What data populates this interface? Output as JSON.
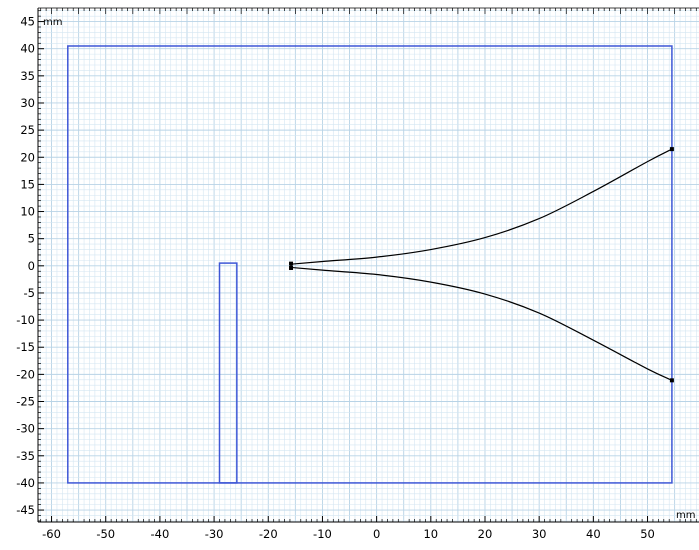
{
  "graphics": {
    "x_unit_label": "mm",
    "y_unit_label": "mm",
    "x_ticks": [
      -60,
      -50,
      -40,
      -30,
      -20,
      -10,
      0,
      10,
      20,
      30,
      40,
      50
    ],
    "y_ticks": [
      45,
      40,
      35,
      30,
      25,
      20,
      15,
      10,
      5,
      0,
      -5,
      -10,
      -15,
      -20,
      -25,
      -30,
      -35,
      -40,
      -45
    ],
    "x_tick_labels": [
      "-60",
      "-50",
      "-40",
      "-30",
      "-20",
      "-10",
      "0",
      "10",
      "20",
      "30",
      "40",
      "50"
    ],
    "y_tick_labels": [
      "45",
      "40",
      "35",
      "30",
      "25",
      "20",
      "15",
      "10",
      "5",
      "0",
      "-5",
      "-10",
      "-15",
      "-20",
      "-25",
      "-30",
      "-35",
      "-40",
      "-45"
    ],
    "x_range": [
      -62.5,
      59.5
    ],
    "y_range": [
      -47.2,
      47.5
    ],
    "grid_minor_step": 1,
    "grid_major_step": 5,
    "colors": {
      "background": "#ffffff",
      "grid_minor": "#d4e6f2",
      "grid_major": "#b8d3e6",
      "domain": "#3e57d6",
      "curve": "#000000",
      "axis_text": "#000000"
    },
    "geometry": {
      "outer_rectangle": {
        "x_min": -57,
        "x_max": 54.5,
        "y_min": -40,
        "y_max": 40.5
      },
      "slot_rectangle": {
        "x_min": -29,
        "x_max": -25.8,
        "y_min": -40,
        "y_max": 0.5
      },
      "horn_upper": [
        [
          -15.8,
          0.3
        ],
        [
          -10,
          0.8
        ],
        [
          0,
          1.6
        ],
        [
          10,
          3
        ],
        [
          20,
          5.2
        ],
        [
          30,
          8.7
        ],
        [
          40,
          13.7
        ],
        [
          50,
          19.2
        ],
        [
          54.5,
          21.5
        ]
      ],
      "horn_lower": [
        [
          -15.8,
          -0.3
        ],
        [
          -10,
          -0.8
        ],
        [
          0,
          -1.6
        ],
        [
          10,
          -3
        ],
        [
          20,
          -5.2
        ],
        [
          30,
          -8.7
        ],
        [
          40,
          -13.7
        ],
        [
          50,
          -19
        ],
        [
          54.5,
          -21.1
        ]
      ],
      "vertices": [
        [
          -15.8,
          0.4
        ],
        [
          -15.8,
          -0.4
        ],
        [
          54.5,
          21.5
        ],
        [
          54.5,
          -21.1
        ]
      ]
    }
  }
}
